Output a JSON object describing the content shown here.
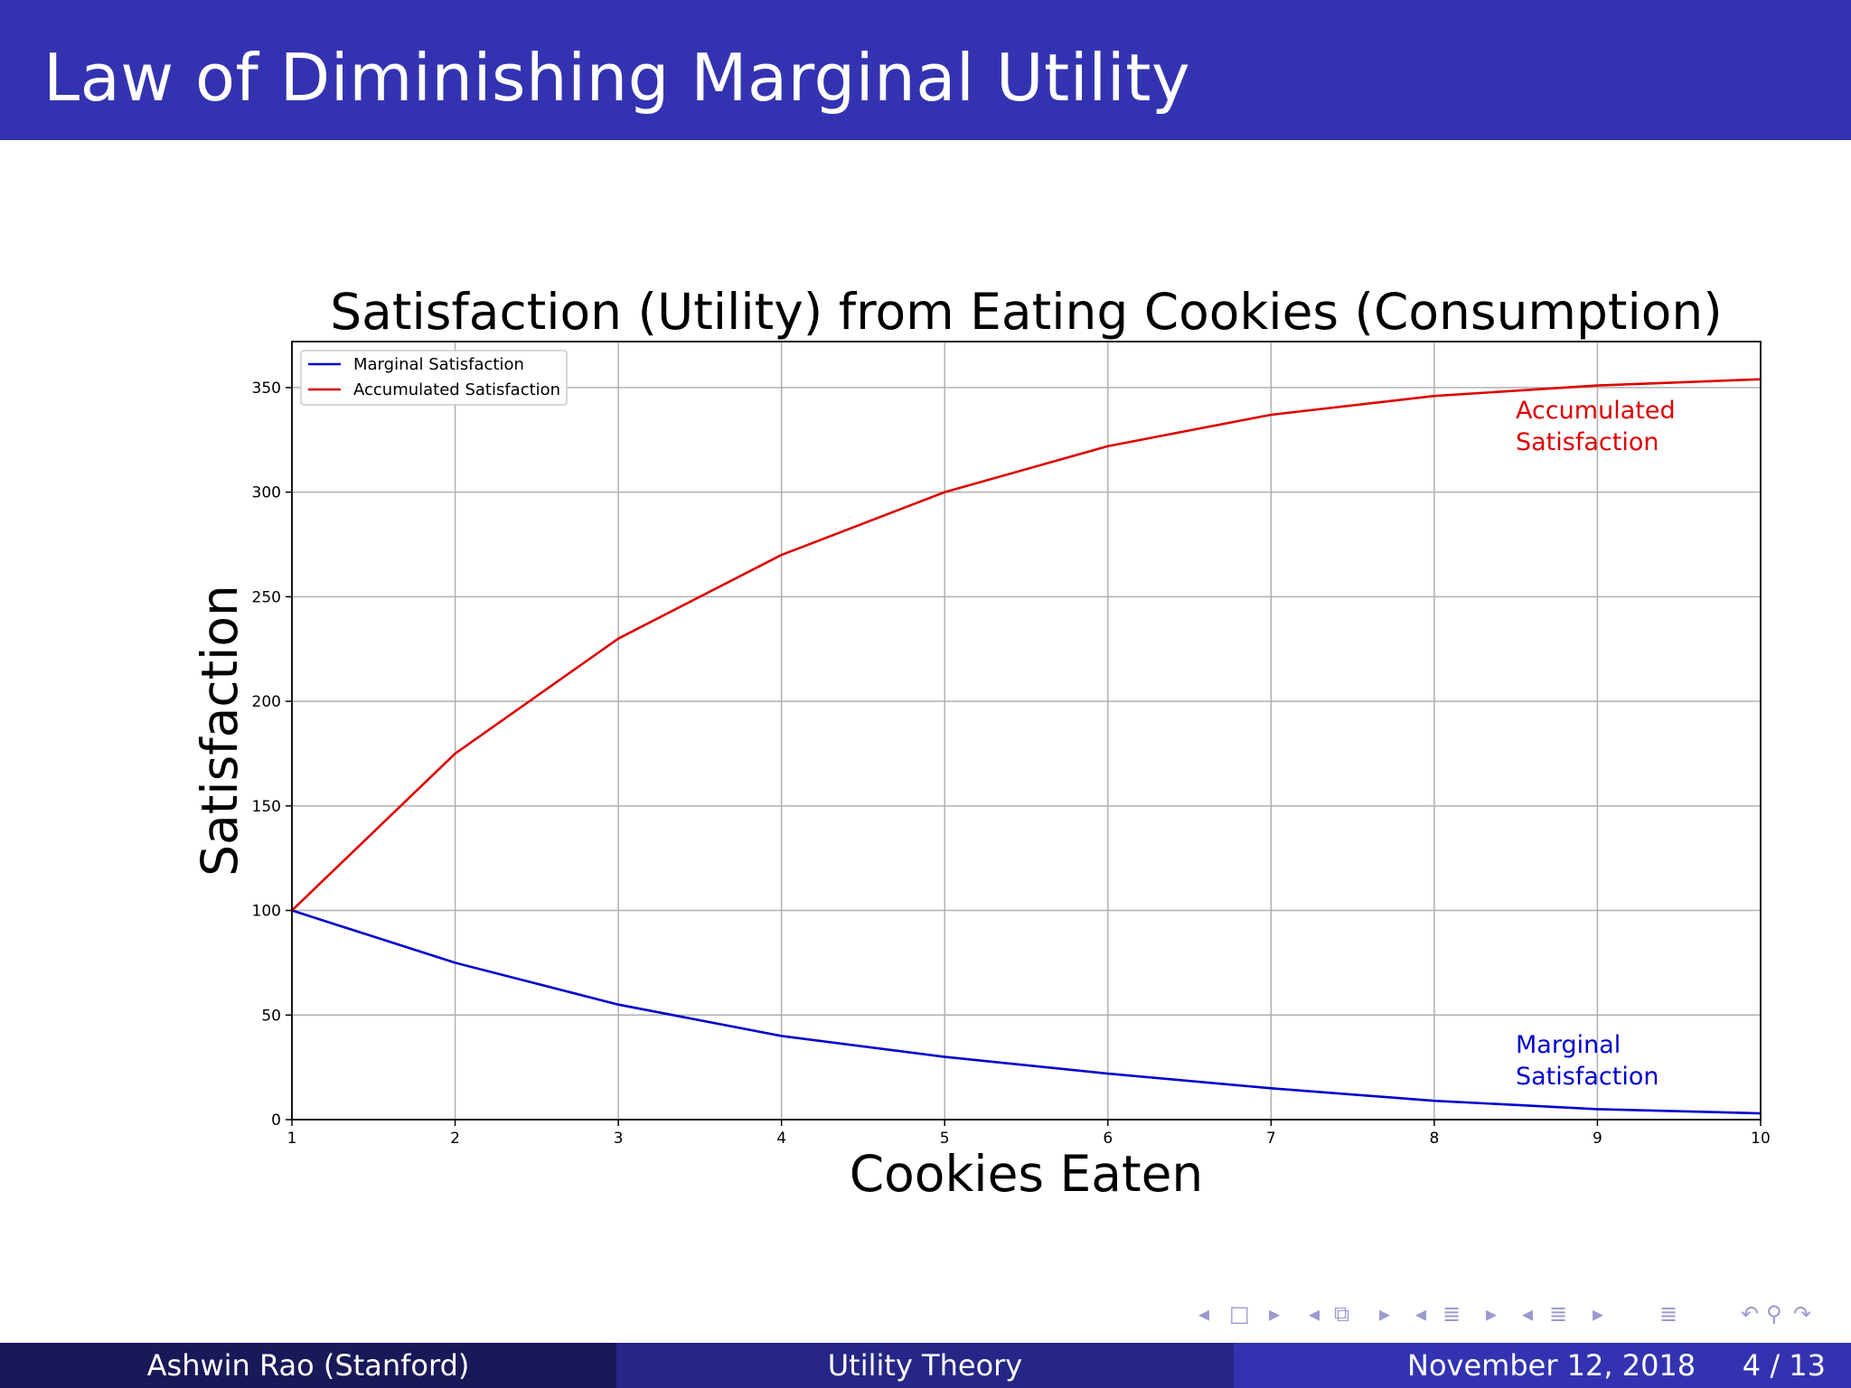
{
  "slide": {
    "title": "Law of Diminishing Marginal Utility"
  },
  "footer": {
    "author": "Ashwin Rao  (Stanford)",
    "topic": "Utility Theory",
    "date": "November 12, 2018",
    "page": "4 / 13"
  },
  "nav_icons": [
    "nav-prev-frame-icon",
    "nav-frame-icon",
    "nav-next-frame-icon",
    "nav-prev-subsection-icon",
    "nav-subsection-icon",
    "nav-next-subsection-icon",
    "nav-prev-section-icon",
    "nav-section-icon",
    "nav-next-section-icon",
    "nav-prev-appendix-icon",
    "nav-appendix-icon",
    "nav-next-appendix-icon",
    "nav-toc-icon",
    "nav-back-icon",
    "nav-search-icon",
    "nav-forward-icon"
  ],
  "chart_data": {
    "type": "line",
    "title": "Satisfaction (Utility) from Eating Cookies (Consumption)",
    "xlabel": "Cookies Eaten",
    "ylabel": "Satisfaction",
    "x": [
      1,
      2,
      3,
      4,
      5,
      6,
      7,
      8,
      9,
      10
    ],
    "xlim": [
      1,
      10
    ],
    "ylim": [
      0,
      372
    ],
    "xticks": [
      1,
      2,
      3,
      4,
      5,
      6,
      7,
      8,
      9,
      10
    ],
    "yticks": [
      0,
      50,
      100,
      150,
      200,
      250,
      300,
      350
    ],
    "grid": true,
    "legend_position": "top-left",
    "series": [
      {
        "name": "Marginal Satisfaction",
        "color": "#0000cc",
        "values": [
          100,
          75,
          55,
          40,
          30,
          22,
          15,
          9,
          5,
          3
        ],
        "annotation": [
          "Marginal",
          "Satisfaction"
        ]
      },
      {
        "name": "Accumulated Satisfaction",
        "color": "#dd0000",
        "values": [
          100,
          175,
          230,
          270,
          300,
          322,
          337,
          346,
          351,
          354
        ],
        "annotation": [
          "Accumulated",
          "Satisfaction"
        ]
      }
    ]
  }
}
